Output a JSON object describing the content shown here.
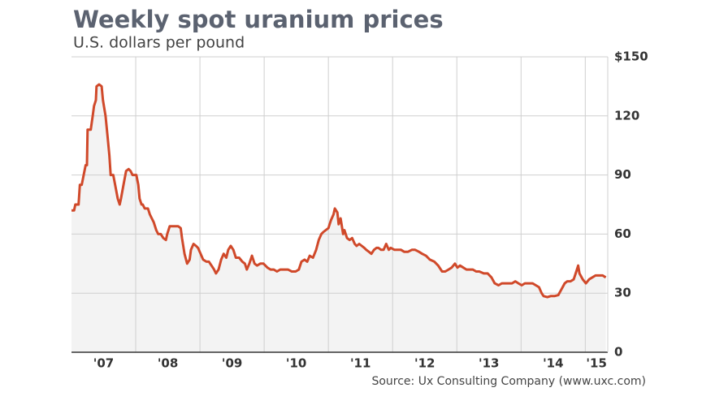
{
  "chart_data": {
    "type": "line",
    "title": "Weekly spot uranium prices",
    "subtitle": "U.S. dollars per pound",
    "source": "Source: Ux Consulting Company (www.uxc.com)",
    "xlim": [
      2007,
      2015.35
    ],
    "xticks": [
      {
        "value": 2007,
        "label": "'07"
      },
      {
        "value": 2008,
        "label": "'08"
      },
      {
        "value": 2009,
        "label": "'09"
      },
      {
        "value": 2010,
        "label": "'10"
      },
      {
        "value": 2011,
        "label": "'11"
      },
      {
        "value": 2012,
        "label": "'12"
      },
      {
        "value": 2013,
        "label": "'13"
      },
      {
        "value": 2014,
        "label": "'14"
      },
      {
        "value": 2015,
        "label": "'15"
      }
    ],
    "ylim": [
      0,
      150
    ],
    "yticks": [
      {
        "value": 150,
        "label": "$150"
      },
      120,
      90,
      60,
      30,
      0
    ],
    "grid": true,
    "x": [
      2007.0,
      2007.04,
      2007.06,
      2007.11,
      2007.13,
      2007.16,
      2007.19,
      2007.22,
      2007.24,
      2007.25,
      2007.3,
      2007.33,
      2007.35,
      2007.38,
      2007.39,
      2007.43,
      2007.47,
      2007.49,
      2007.53,
      2007.56,
      2007.59,
      2007.61,
      2007.65,
      2007.68,
      2007.72,
      2007.75,
      2007.77,
      2007.81,
      2007.85,
      2007.89,
      2007.92,
      2007.95,
      2008.01,
      2008.04,
      2008.06,
      2008.09,
      2008.11,
      2008.14,
      2008.19,
      2008.22,
      2008.25,
      2008.28,
      2008.32,
      2008.35,
      2008.39,
      2008.43,
      2008.47,
      2008.49,
      2008.53,
      2008.59,
      2008.66,
      2008.7,
      2008.72,
      2008.76,
      2008.8,
      2008.84,
      2008.86,
      2008.9,
      2008.94,
      2008.97,
      2009.01,
      2009.05,
      2009.1,
      2009.14,
      2009.18,
      2009.22,
      2009.25,
      2009.29,
      2009.33,
      2009.37,
      2009.41,
      2009.44,
      2009.48,
      2009.52,
      2009.56,
      2009.61,
      2009.66,
      2009.7,
      2009.73,
      2009.77,
      2009.81,
      2009.85,
      2009.89,
      2009.94,
      2009.99,
      2010.05,
      2010.1,
      2010.15,
      2010.2,
      2010.25,
      2010.3,
      2010.37,
      2010.43,
      2010.49,
      2010.54,
      2010.58,
      2010.63,
      2010.67,
      2010.71,
      2010.76,
      2010.81,
      2010.85,
      2010.89,
      2010.92,
      2010.96,
      2011.0,
      2011.04,
      2011.08,
      2011.1,
      2011.14,
      2011.16,
      2011.19,
      2011.23,
      2011.25,
      2011.29,
      2011.33,
      2011.37,
      2011.41,
      2011.44,
      2011.48,
      2011.52,
      2011.56,
      2011.59,
      2011.63,
      2011.67,
      2011.71,
      2011.75,
      2011.78,
      2011.82,
      2011.86,
      2011.9,
      2011.94,
      2011.97,
      2012.03,
      2012.08,
      2012.13,
      2012.18,
      2012.24,
      2012.3,
      2012.35,
      2012.41,
      2012.46,
      2012.52,
      2012.58,
      2012.65,
      2012.71,
      2012.77,
      2012.82,
      2012.87,
      2012.92,
      2012.97,
      2013.01,
      2013.05,
      2013.1,
      2013.15,
      2013.2,
      2013.25,
      2013.3,
      2013.35,
      2013.42,
      2013.48,
      2013.54,
      2013.59,
      2013.65,
      2013.7,
      2013.75,
      2013.81,
      2013.86,
      2013.91,
      2013.96,
      2014.01,
      2014.06,
      2014.13,
      2014.18,
      2014.23,
      2014.28,
      2014.32,
      2014.35,
      2014.41,
      2014.46,
      2014.52,
      2014.58,
      2014.63,
      2014.68,
      2014.72,
      2014.77,
      2014.82,
      2014.86,
      2014.89,
      2014.91,
      2014.96,
      2015.01,
      2015.06,
      2015.11,
      2015.16,
      2015.22,
      2015.27,
      2015.32
    ],
    "series": [
      {
        "name": "Spot uranium price",
        "color": "#d0492a",
        "values": [
          72,
          72,
          75,
          75,
          85,
          85,
          90,
          95,
          95,
          113,
          113,
          120,
          125,
          128,
          135,
          136,
          135,
          128,
          120,
          110,
          100,
          90,
          90,
          85,
          78,
          75,
          78,
          85,
          92,
          93,
          92,
          90,
          90,
          85,
          78,
          75,
          75,
          73,
          73,
          70,
          68,
          66,
          62,
          60,
          60,
          58,
          57,
          60,
          64,
          64,
          64,
          63,
          58,
          50,
          45,
          47,
          52,
          55,
          54,
          53,
          50,
          47,
          46,
          46,
          44,
          42,
          40,
          42,
          47,
          50,
          48,
          52,
          54,
          52,
          48,
          48,
          46,
          45,
          42,
          45,
          49,
          45,
          44,
          45,
          45,
          43,
          42,
          42,
          41,
          42,
          42,
          42,
          41,
          41,
          42,
          46,
          47,
          46,
          49,
          48,
          52,
          57,
          60,
          61,
          62,
          63,
          67,
          70,
          73,
          71,
          65,
          68,
          60,
          62,
          58,
          57,
          58,
          55,
          54,
          55,
          54,
          53,
          52,
          51,
          50,
          52,
          53,
          53,
          52,
          52,
          55,
          52,
          53,
          52,
          52,
          52,
          51,
          51,
          52,
          52,
          51,
          50,
          49,
          47,
          46,
          44,
          41,
          41,
          42,
          43,
          45,
          43,
          44,
          43,
          42,
          42,
          42,
          41,
          41,
          40,
          40,
          38,
          35,
          34,
          35,
          35,
          35,
          35,
          36,
          35,
          34,
          35,
          35,
          35,
          34,
          33,
          30,
          28.5,
          28,
          28.5,
          28.5,
          29,
          32,
          35,
          36,
          36,
          37,
          41,
          44,
          40,
          37,
          35,
          37,
          38,
          39,
          39,
          39,
          38
        ]
      }
    ]
  }
}
